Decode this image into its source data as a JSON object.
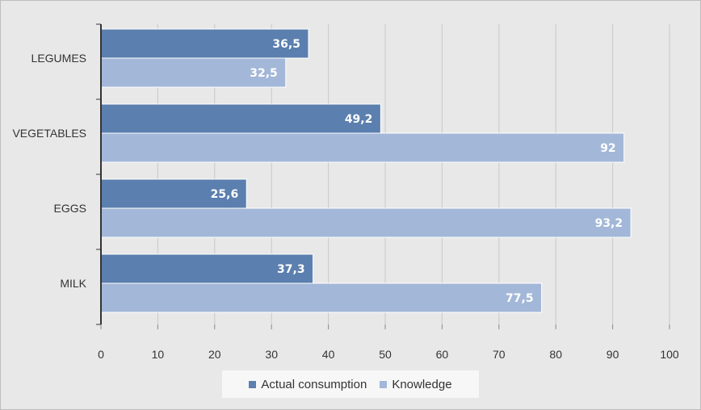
{
  "chart_data": {
    "type": "bar",
    "orientation": "horizontal",
    "title": "",
    "xlabel": "",
    "ylabel": "",
    "categories": [
      "LEGUMES",
      "VEGETABLES",
      "EGGS",
      "MILK"
    ],
    "series": [
      {
        "name": "Actual consumption",
        "color": "#5b7fae",
        "values": [
          36.5,
          49.2,
          25.6,
          37.3
        ],
        "labels": [
          "36,5",
          "49,2",
          "25,6",
          "37,3"
        ]
      },
      {
        "name": "Knowledge",
        "color": "#a3b7d8",
        "values": [
          32.5,
          92,
          93.2,
          77.5
        ],
        "labels": [
          "32,5",
          "92",
          "93,2",
          "77,5"
        ]
      }
    ],
    "xlim": [
      0,
      100
    ],
    "xticks": [
      "0",
      "10",
      "20",
      "30",
      "40",
      "50",
      "60",
      "70",
      "80",
      "90",
      "100"
    ],
    "grid": true,
    "legend_position": "bottom"
  },
  "legend": {
    "items": [
      "Actual consumption",
      "Knowledge"
    ]
  }
}
